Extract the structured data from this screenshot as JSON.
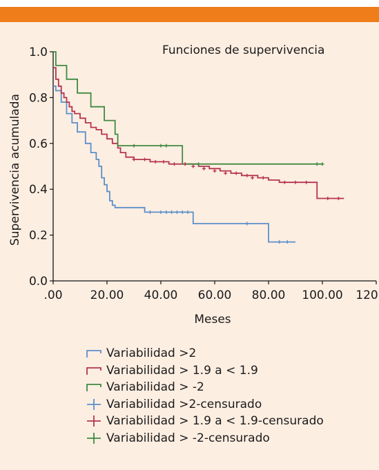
{
  "chart_data": {
    "type": "line",
    "subtype": "step",
    "title": "Funciones de supervivencia",
    "xlabel": "Meses",
    "ylabel": "Supervivencia acumulada",
    "xlim": [
      0,
      120
    ],
    "ylim": [
      0,
      1.0
    ],
    "x_ticks": [
      ".00",
      "20.00",
      "40.00",
      "60.00",
      "80.00",
      "100.00",
      "120.00"
    ],
    "y_ticks": [
      "0.0",
      "0.2",
      "0.4",
      "0.6",
      "0.8",
      "1.0"
    ],
    "grid": false,
    "legend_position": "bottom",
    "series": [
      {
        "name": "Variabilidad >2",
        "color": "#5b8fc9",
        "x": [
          0,
          1,
          3,
          5,
          7,
          9,
          12,
          14,
          16,
          17,
          18,
          19,
          20,
          21,
          22,
          23,
          25,
          34,
          52,
          80,
          90
        ],
        "y": [
          0.85,
          0.83,
          0.78,
          0.73,
          0.69,
          0.65,
          0.6,
          0.56,
          0.53,
          0.5,
          0.45,
          0.42,
          0.39,
          0.35,
          0.33,
          0.32,
          0.32,
          0.3,
          0.25,
          0.17,
          0.17
        ]
      },
      {
        "name": "Variabilidad > 1.9 a < 1.9",
        "color": "#b5334f",
        "x": [
          0,
          1,
          2,
          3,
          4,
          5,
          6,
          7,
          8,
          10,
          12,
          14,
          16,
          18,
          20,
          22,
          24,
          25,
          27,
          30,
          33,
          36,
          40,
          43,
          46,
          50,
          54,
          58,
          62,
          66,
          70,
          76,
          80,
          84,
          88,
          98,
          100,
          108
        ],
        "y": [
          0.93,
          0.88,
          0.85,
          0.82,
          0.8,
          0.78,
          0.76,
          0.74,
          0.73,
          0.71,
          0.69,
          0.67,
          0.66,
          0.64,
          0.62,
          0.6,
          0.58,
          0.56,
          0.54,
          0.53,
          0.53,
          0.52,
          0.52,
          0.51,
          0.51,
          0.51,
          0.5,
          0.49,
          0.48,
          0.47,
          0.46,
          0.45,
          0.44,
          0.43,
          0.43,
          0.36,
          0.36,
          0.36
        ]
      },
      {
        "name": "Variabilidad > -2",
        "color": "#3e8a3f",
        "x": [
          0,
          1,
          5,
          9,
          14,
          19,
          23,
          24,
          47,
          48,
          100
        ],
        "y": [
          1.0,
          0.94,
          0.88,
          0.82,
          0.76,
          0.7,
          0.64,
          0.59,
          0.59,
          0.51,
          0.51
        ]
      }
    ],
    "censored": [
      {
        "name": "Variabilidad >2-censurado",
        "color": "#5b8fc9",
        "x": [
          36,
          40,
          42,
          44,
          46,
          48,
          50,
          72,
          84,
          87
        ],
        "y": [
          0.3,
          0.3,
          0.3,
          0.3,
          0.3,
          0.3,
          0.3,
          0.25,
          0.17,
          0.17
        ]
      },
      {
        "name": "Variabilidad > 1.9 a < 1.9-censurado",
        "color": "#b5334f",
        "x": [
          30,
          34,
          38,
          41,
          45,
          49,
          52,
          56,
          60,
          64,
          68,
          72,
          74,
          78,
          86,
          90,
          94,
          102,
          106
        ],
        "y": [
          0.53,
          0.53,
          0.52,
          0.52,
          0.51,
          0.51,
          0.5,
          0.49,
          0.48,
          0.47,
          0.47,
          0.46,
          0.45,
          0.45,
          0.43,
          0.43,
          0.43,
          0.36,
          0.36
        ]
      },
      {
        "name": "Variabilidad > -2-censurado",
        "color": "#3e8a3f",
        "x": [
          30,
          40,
          42,
          54,
          98,
          100
        ],
        "y": [
          0.59,
          0.59,
          0.59,
          0.51,
          0.51,
          0.51
        ]
      }
    ]
  },
  "legend": {
    "items": [
      {
        "label": "Variabilidad >2",
        "color": "#5b8fc9",
        "symbol": "step"
      },
      {
        "label": "Variabilidad > 1.9 a < 1.9",
        "color": "#b5334f",
        "symbol": "step"
      },
      {
        "label": "Variabilidad > -2",
        "color": "#3e8a3f",
        "symbol": "step"
      },
      {
        "label": "Variabilidad >2-censurado",
        "color": "#5b8fc9",
        "symbol": "cross"
      },
      {
        "label": "Variabilidad > 1.9 a < 1.9-censurado",
        "color": "#b5334f",
        "symbol": "cross"
      },
      {
        "label": "Variabilidad > -2-censurado",
        "color": "#3e8a3f",
        "symbol": "cross"
      }
    ]
  },
  "colors": {
    "background": "#fdeee2",
    "header_bar": "#ef7d1a"
  }
}
